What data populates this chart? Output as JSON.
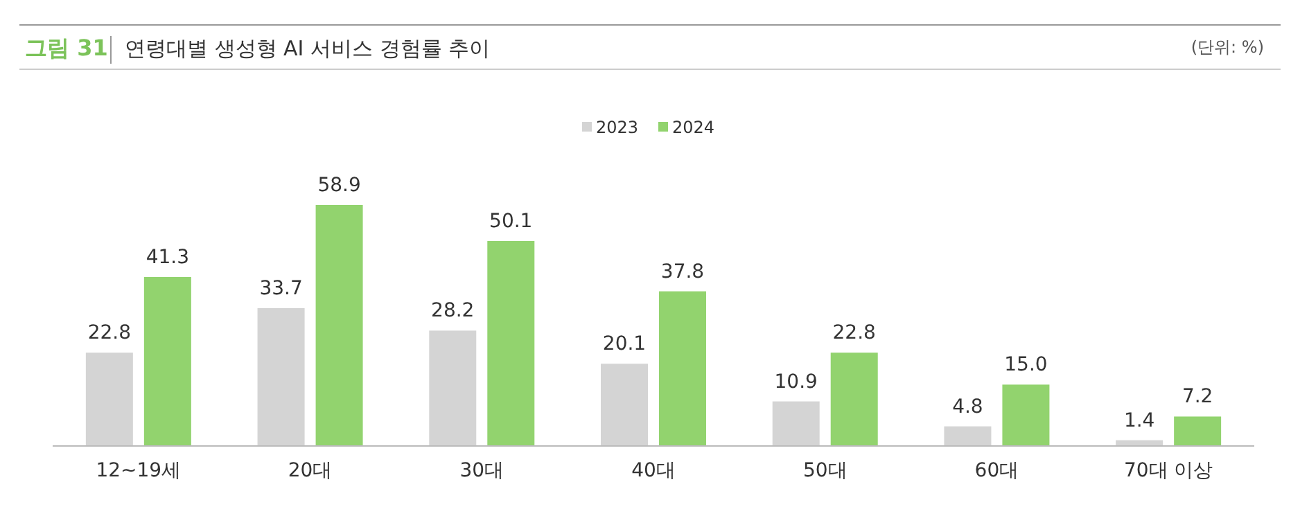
{
  "chart_data": {
    "type": "bar",
    "title": "연령대별 생성형 AI 서비스 경험률 추이",
    "annotations": [
      "그림 31",
      "(단위: %)"
    ],
    "categories": [
      "12~19세",
      "20대",
      "30대",
      "40대",
      "50대",
      "60대",
      "70대 이상"
    ],
    "series": [
      {
        "name": "2023",
        "color": "#d4d4d4",
        "values": [
          22.8,
          33.7,
          28.2,
          20.1,
          10.9,
          4.8,
          1.4
        ],
        "value_labels": [
          "22.8",
          "33.7",
          "28.2",
          "20.1",
          "10.9",
          "4.8",
          "1.4"
        ]
      },
      {
        "name": "2024",
        "color": "#92d36e",
        "values": [
          41.3,
          58.9,
          50.1,
          37.8,
          22.8,
          15.0,
          7.2
        ],
        "value_labels": [
          "41.3",
          "58.9",
          "50.1",
          "37.8",
          "22.8",
          "15.0",
          "7.2"
        ]
      }
    ],
    "legend": "top"
  }
}
